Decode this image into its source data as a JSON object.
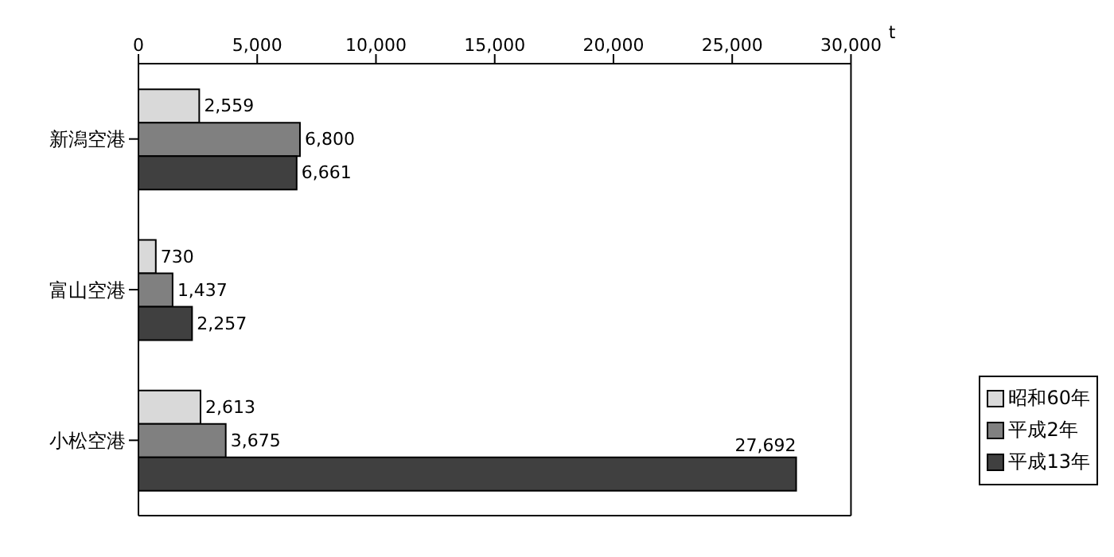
{
  "chart_data": {
    "type": "bar",
    "orientation": "horizontal",
    "xlabel": "t",
    "categories": [
      "新潟空港",
      "富山空港",
      "小松空港"
    ],
    "series": [
      {
        "name": "昭和60年",
        "color": "#d9d9d9",
        "values": [
          2559,
          730,
          2613
        ],
        "value_labels": [
          "2,559",
          "730",
          "2,613"
        ]
      },
      {
        "name": "平成2年",
        "color": "#808080",
        "values": [
          6800,
          1437,
          3675
        ],
        "value_labels": [
          "6,800",
          "1,437",
          "3,675"
        ]
      },
      {
        "name": "平成13年",
        "color": "#404040",
        "values": [
          6661,
          2257,
          27692
        ],
        "value_labels": [
          "6,661",
          "2,257",
          "27,692"
        ]
      }
    ],
    "xlim": [
      0,
      30000
    ],
    "xticks": [
      0,
      {
        "value": 5000,
        "label": "5,000"
      },
      {
        "value": 10000,
        "label": "10,000"
      },
      {
        "value": 15000,
        "label": "15,000"
      },
      {
        "value": 20000,
        "label": "20,000"
      },
      {
        "value": 25000,
        "label": "25,000"
      },
      {
        "value": 30000,
        "label": "30,000"
      }
    ],
    "grid": false,
    "legend": "bottom right"
  }
}
